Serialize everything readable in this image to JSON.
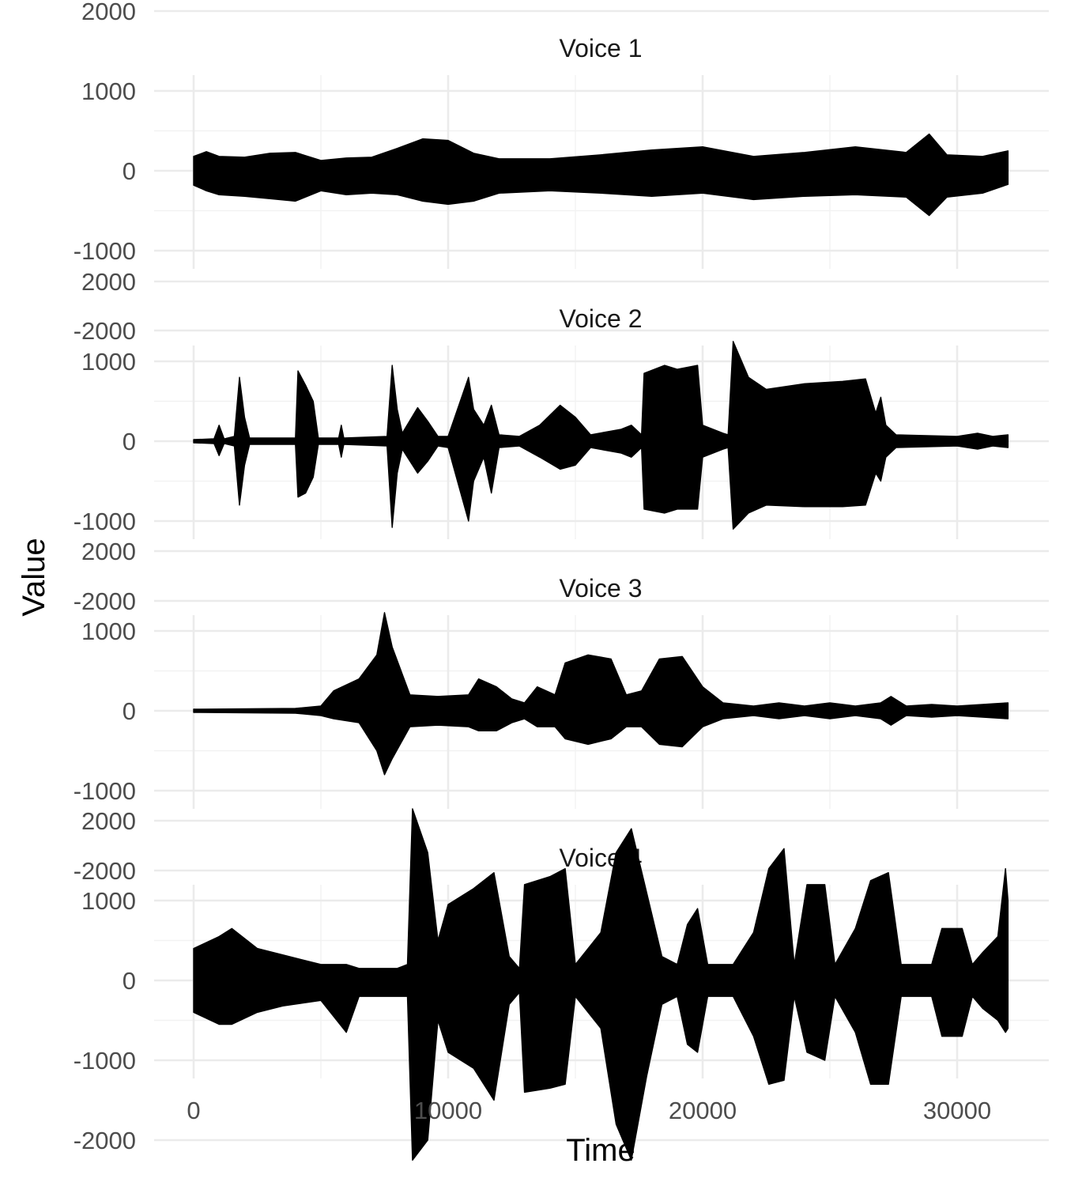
{
  "chart_data": {
    "type": "line",
    "layout": "facet-vertical",
    "xlabel": "Time",
    "ylabel": "Value",
    "xlim": [
      0,
      32000
    ],
    "ylim": [
      -2400,
      2400
    ],
    "x_ticks": [
      0,
      10000,
      20000,
      30000
    ],
    "x_tick_labels": [
      "0",
      "10000",
      "20000",
      "30000"
    ],
    "y_ticks": [
      -2000,
      -1000,
      0,
      1000,
      2000
    ],
    "y_tick_labels": [
      "-2000",
      "-1000",
      "0",
      "1000",
      "2000"
    ],
    "series_color": "#000000",
    "panels": [
      {
        "title": "Voice 1",
        "envelope": [
          [
            0,
            180,
            -180
          ],
          [
            500,
            240,
            -250
          ],
          [
            1000,
            180,
            -300
          ],
          [
            2000,
            170,
            -320
          ],
          [
            3000,
            220,
            -350
          ],
          [
            4000,
            230,
            -380
          ],
          [
            5000,
            130,
            -250
          ],
          [
            6000,
            160,
            -300
          ],
          [
            7000,
            170,
            -280
          ],
          [
            8000,
            280,
            -300
          ],
          [
            9000,
            400,
            -380
          ],
          [
            10000,
            380,
            -420
          ],
          [
            11000,
            220,
            -380
          ],
          [
            12000,
            150,
            -280
          ],
          [
            14000,
            150,
            -250
          ],
          [
            16000,
            200,
            -280
          ],
          [
            18000,
            260,
            -320
          ],
          [
            20000,
            300,
            -280
          ],
          [
            22000,
            180,
            -360
          ],
          [
            24000,
            230,
            -320
          ],
          [
            26000,
            300,
            -300
          ],
          [
            28000,
            230,
            -330
          ],
          [
            28900,
            460,
            -560
          ],
          [
            29600,
            200,
            -330
          ],
          [
            31000,
            180,
            -280
          ],
          [
            32000,
            250,
            -170
          ]
        ]
      },
      {
        "title": "Voice 2",
        "envelope": [
          [
            0,
            20,
            -20
          ],
          [
            800,
            30,
            -30
          ],
          [
            1000,
            200,
            -180
          ],
          [
            1200,
            30,
            -30
          ],
          [
            1600,
            60,
            -60
          ],
          [
            1800,
            800,
            -800
          ],
          [
            2000,
            300,
            -300
          ],
          [
            2200,
            40,
            -40
          ],
          [
            4000,
            40,
            -40
          ],
          [
            4100,
            880,
            -700
          ],
          [
            4400,
            700,
            -650
          ],
          [
            4700,
            500,
            -450
          ],
          [
            4900,
            40,
            -40
          ],
          [
            5700,
            40,
            -40
          ],
          [
            5800,
            200,
            -200
          ],
          [
            5900,
            40,
            -40
          ],
          [
            7600,
            60,
            -60
          ],
          [
            7800,
            950,
            -1080
          ],
          [
            8000,
            400,
            -400
          ],
          [
            8200,
            100,
            -100
          ],
          [
            8800,
            420,
            -400
          ],
          [
            9200,
            250,
            -250
          ],
          [
            9600,
            60,
            -60
          ],
          [
            10000,
            60,
            -80
          ],
          [
            10800,
            800,
            -1000
          ],
          [
            11000,
            400,
            -500
          ],
          [
            11400,
            200,
            -200
          ],
          [
            11700,
            450,
            -650
          ],
          [
            12000,
            80,
            -80
          ],
          [
            12800,
            60,
            -60
          ],
          [
            13600,
            200,
            -200
          ],
          [
            14400,
            450,
            -350
          ],
          [
            15000,
            300,
            -300
          ],
          [
            15600,
            80,
            -80
          ],
          [
            16800,
            150,
            -150
          ],
          [
            17200,
            200,
            -200
          ],
          [
            17600,
            80,
            -80
          ],
          [
            17700,
            850,
            -850
          ],
          [
            18500,
            950,
            -900
          ],
          [
            19000,
            900,
            -850
          ],
          [
            19800,
            950,
            -850
          ],
          [
            20000,
            200,
            -200
          ],
          [
            20800,
            100,
            -100
          ],
          [
            21000,
            80,
            -80
          ],
          [
            21200,
            1250,
            -1100
          ],
          [
            21800,
            800,
            -900
          ],
          [
            22500,
            650,
            -800
          ],
          [
            24000,
            720,
            -820
          ],
          [
            25500,
            750,
            -820
          ],
          [
            26400,
            780,
            -800
          ],
          [
            26800,
            350,
            -400
          ],
          [
            27000,
            550,
            -500
          ],
          [
            27200,
            200,
            -200
          ],
          [
            27600,
            80,
            -80
          ],
          [
            30000,
            60,
            -60
          ],
          [
            30800,
            100,
            -100
          ],
          [
            31400,
            60,
            -60
          ],
          [
            32000,
            80,
            -80
          ]
        ]
      },
      {
        "title": "Voice 3",
        "envelope": [
          [
            0,
            20,
            -20
          ],
          [
            4000,
            30,
            -30
          ],
          [
            5000,
            60,
            -60
          ],
          [
            5500,
            250,
            -100
          ],
          [
            6500,
            400,
            -150
          ],
          [
            7200,
            700,
            -500
          ],
          [
            7500,
            1230,
            -800
          ],
          [
            7800,
            800,
            -600
          ],
          [
            8500,
            200,
            -200
          ],
          [
            9600,
            180,
            -180
          ],
          [
            10800,
            200,
            -200
          ],
          [
            11200,
            400,
            -250
          ],
          [
            11900,
            300,
            -250
          ],
          [
            12500,
            150,
            -150
          ],
          [
            13000,
            100,
            -100
          ],
          [
            13500,
            300,
            -200
          ],
          [
            14200,
            200,
            -200
          ],
          [
            14600,
            600,
            -350
          ],
          [
            15500,
            700,
            -420
          ],
          [
            16400,
            650,
            -350
          ],
          [
            17000,
            200,
            -200
          ],
          [
            17600,
            250,
            -200
          ],
          [
            18300,
            650,
            -420
          ],
          [
            19200,
            680,
            -450
          ],
          [
            20000,
            300,
            -200
          ],
          [
            20800,
            100,
            -100
          ],
          [
            22000,
            60,
            -60
          ],
          [
            23000,
            100,
            -100
          ],
          [
            24000,
            60,
            -60
          ],
          [
            25000,
            100,
            -100
          ],
          [
            26000,
            60,
            -60
          ],
          [
            27000,
            100,
            -100
          ],
          [
            27400,
            180,
            -180
          ],
          [
            28000,
            60,
            -60
          ],
          [
            29000,
            80,
            -80
          ],
          [
            30000,
            60,
            -60
          ],
          [
            31000,
            80,
            -80
          ],
          [
            32000,
            100,
            -100
          ]
        ]
      },
      {
        "title": "Voice 4",
        "envelope": [
          [
            0,
            400,
            -400
          ],
          [
            1000,
            550,
            -550
          ],
          [
            1500,
            650,
            -550
          ],
          [
            2500,
            400,
            -400
          ],
          [
            3500,
            320,
            -320
          ],
          [
            5000,
            200,
            -250
          ],
          [
            6000,
            200,
            -650
          ],
          [
            6500,
            150,
            -200
          ],
          [
            8000,
            150,
            -200
          ],
          [
            8400,
            200,
            -200
          ],
          [
            8600,
            2150,
            -2250
          ],
          [
            9200,
            1600,
            -2000
          ],
          [
            9600,
            500,
            -500
          ],
          [
            10000,
            950,
            -900
          ],
          [
            11000,
            1150,
            -1100
          ],
          [
            11800,
            1350,
            -1500
          ],
          [
            12400,
            300,
            -300
          ],
          [
            12800,
            150,
            -150
          ],
          [
            13000,
            1200,
            -1400
          ],
          [
            14000,
            1300,
            -1350
          ],
          [
            14600,
            1400,
            -1300
          ],
          [
            15000,
            200,
            -200
          ],
          [
            16000,
            600,
            -600
          ],
          [
            16600,
            1600,
            -1800
          ],
          [
            17200,
            1900,
            -2250
          ],
          [
            17800,
            1100,
            -1200
          ],
          [
            18400,
            300,
            -300
          ],
          [
            19000,
            200,
            -200
          ],
          [
            19400,
            700,
            -800
          ],
          [
            19800,
            900,
            -900
          ],
          [
            20200,
            200,
            -200
          ],
          [
            21200,
            200,
            -200
          ],
          [
            22000,
            600,
            -700
          ],
          [
            22600,
            1400,
            -1300
          ],
          [
            23200,
            1650,
            -1250
          ],
          [
            23600,
            200,
            -200
          ],
          [
            24100,
            1200,
            -900
          ],
          [
            24800,
            1200,
            -1000
          ],
          [
            25200,
            200,
            -200
          ],
          [
            26000,
            650,
            -650
          ],
          [
            26600,
            1250,
            -1300
          ],
          [
            27300,
            1350,
            -1300
          ],
          [
            27800,
            200,
            -200
          ],
          [
            29000,
            200,
            -200
          ],
          [
            29400,
            650,
            -700
          ],
          [
            30200,
            650,
            -700
          ],
          [
            30600,
            200,
            -200
          ],
          [
            31000,
            350,
            -350
          ],
          [
            31600,
            550,
            -500
          ],
          [
            31900,
            1400,
            -650
          ],
          [
            32000,
            1000,
            -600
          ]
        ]
      }
    ]
  }
}
